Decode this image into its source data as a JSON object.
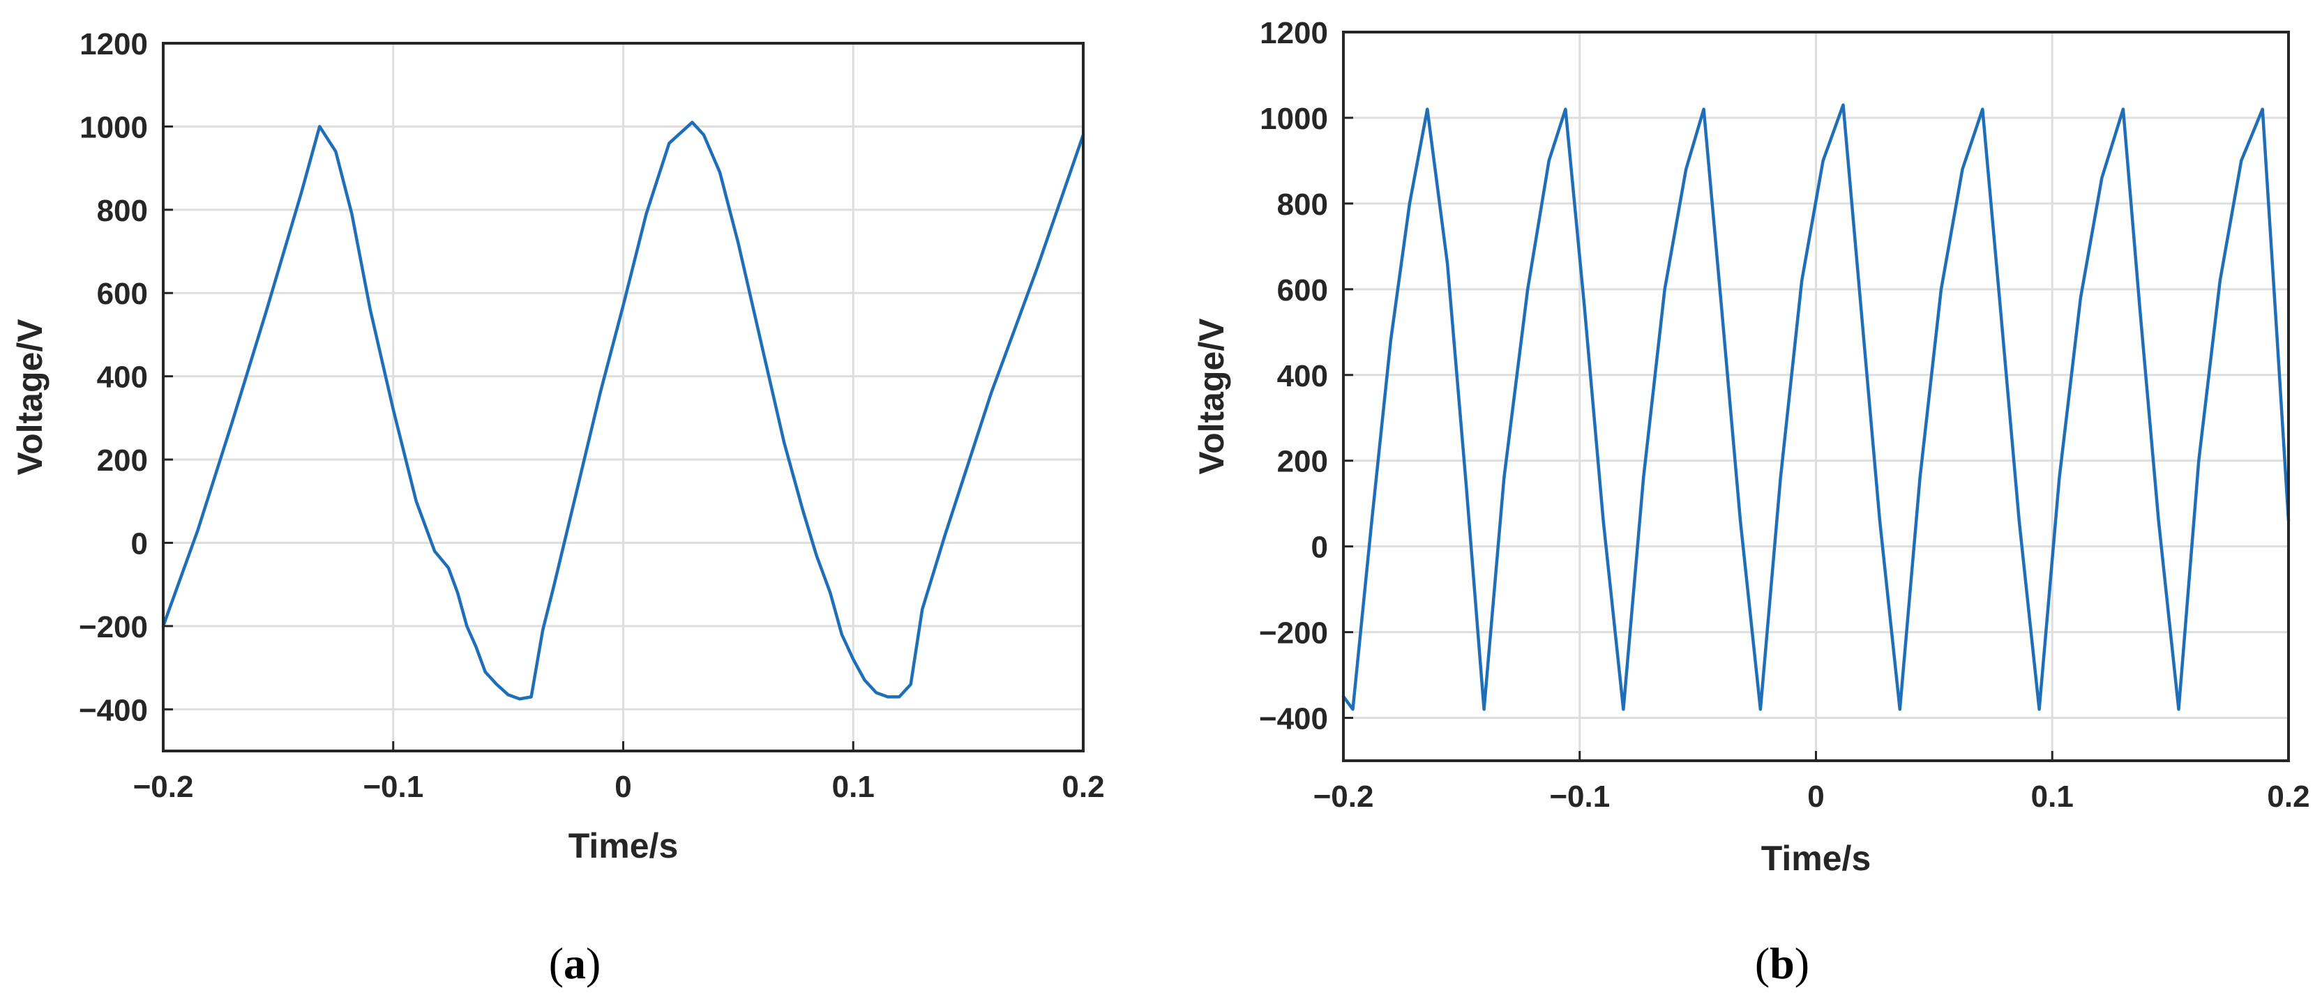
{
  "colors": {
    "series": "#1f6fb8"
  },
  "chart_data": [
    {
      "type": "line",
      "caption": {
        "open": "(",
        "letter": "a",
        "close": ")"
      },
      "xlabel": "Time/s",
      "ylabel": "Voltage/V",
      "xlim": [
        -0.2,
        0.2
      ],
      "ylim": [
        -500,
        1200
      ],
      "xticks": [
        -0.2,
        -0.1,
        0,
        0.1,
        0.2
      ],
      "xtick_labels": [
        "−0.2",
        "−0.1",
        "0",
        "0.1",
        "0.2"
      ],
      "yticks": [
        -400,
        -200,
        0,
        200,
        400,
        600,
        800,
        1000,
        1200
      ],
      "ytick_labels": [
        "−400",
        "−200",
        "0",
        "200",
        "400",
        "600",
        "800",
        "1000",
        "1200"
      ],
      "grid": true,
      "legend": "none",
      "series": [
        {
          "x": [
            -0.2,
            -0.185,
            -0.17,
            -0.155,
            -0.14,
            -0.132,
            -0.125,
            -0.118,
            -0.11,
            -0.1,
            -0.09,
            -0.082,
            -0.076,
            -0.072,
            -0.068,
            -0.064,
            -0.06,
            -0.055,
            -0.05,
            -0.045,
            -0.04,
            -0.035,
            -0.03,
            -0.02,
            -0.01,
            0,
            0.01,
            0.02,
            0.03,
            0.035,
            0.042,
            0.05,
            0.06,
            0.07,
            0.078,
            0.084,
            0.09,
            0.095,
            0.1,
            0.105,
            0.11,
            0.115,
            0.12,
            0.125,
            0.13,
            0.14,
            0.15,
            0.16,
            0.17,
            0.18,
            0.19,
            0.2
          ],
          "y": [
            -200,
            30,
            290,
            560,
            840,
            1000,
            940,
            790,
            560,
            320,
            100,
            -20,
            -60,
            -120,
            -200,
            -250,
            -310,
            -340,
            -365,
            -375,
            -370,
            -210,
            -100,
            130,
            360,
            570,
            790,
            960,
            1010,
            980,
            890,
            720,
            480,
            240,
            80,
            -30,
            -120,
            -220,
            -280,
            -330,
            -360,
            -370,
            -370,
            -340,
            -160,
            20,
            190,
            360,
            510,
            660,
            820,
            980
          ]
        }
      ]
    },
    {
      "type": "line",
      "caption": {
        "open": "(",
        "letter": "b",
        "close": ")"
      },
      "xlabel": "Time/s",
      "ylabel": "Voltage/V",
      "xlim": [
        -0.2,
        0.2
      ],
      "ylim": [
        -500,
        1200
      ],
      "xticks": [
        -0.2,
        -0.1,
        0,
        0.1,
        0.2
      ],
      "xtick_labels": [
        "−0.2",
        "−0.1",
        "0",
        "0.1",
        "0.2"
      ],
      "yticks": [
        -400,
        -200,
        0,
        200,
        400,
        600,
        800,
        1000,
        1200
      ],
      "ytick_labels": [
        "−400",
        "−200",
        "0",
        "200",
        "400",
        "600",
        "800",
        "1000",
        "1200"
      ],
      "grid": true,
      "legend": "none",
      "series": [
        {
          "x": [
            -0.2,
            -0.196,
            -0.188,
            -0.18,
            -0.172,
            -0.1645,
            -0.156,
            -0.148,
            -0.1405,
            -0.132,
            -0.122,
            -0.113,
            -0.106,
            -0.098,
            -0.09,
            -0.0815,
            -0.073,
            -0.064,
            -0.055,
            -0.0475,
            -0.04,
            -0.032,
            -0.0235,
            -0.015,
            -0.006,
            0.003,
            0.0115,
            0.019,
            0.027,
            0.0355,
            0.044,
            0.053,
            0.062,
            0.0705,
            0.078,
            0.086,
            0.0945,
            0.103,
            0.112,
            0.121,
            0.13,
            0.137,
            0.145,
            0.1535,
            0.162,
            0.171,
            0.18,
            0.189,
            0.195,
            0.2
          ],
          "y": [
            -350,
            -380,
            60,
            480,
            800,
            1020,
            660,
            140,
            -380,
            160,
            600,
            900,
            1020,
            560,
            60,
            -380,
            160,
            600,
            880,
            1020,
            560,
            60,
            -380,
            160,
            620,
            900,
            1030,
            560,
            60,
            -380,
            160,
            600,
            880,
            1020,
            560,
            60,
            -380,
            160,
            580,
            860,
            1020,
            560,
            60,
            -380,
            200,
            620,
            900,
            1020,
            500,
            60
          ]
        }
      ]
    }
  ]
}
